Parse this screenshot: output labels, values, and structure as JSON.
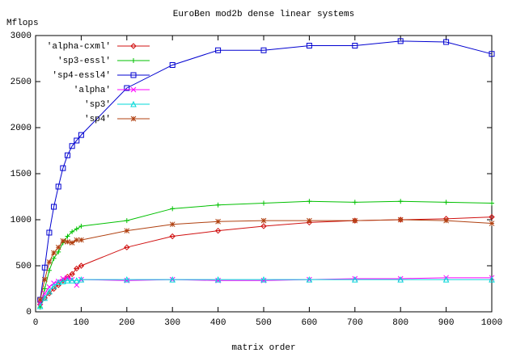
{
  "chart_data": {
    "type": "line",
    "title": "EuroBen mod2b dense linear systems",
    "ylabel": "Mflops",
    "xlabel": "matrix order",
    "x": [
      10,
      20,
      30,
      40,
      50,
      60,
      70,
      80,
      90,
      100,
      200,
      300,
      400,
      500,
      600,
      700,
      800,
      900,
      1000
    ],
    "xlim": [
      0,
      1000
    ],
    "xticks": [
      0,
      100,
      200,
      300,
      400,
      500,
      600,
      700,
      800,
      900,
      1000
    ],
    "ylim": [
      0,
      3000
    ],
    "yticks": [
      0,
      500,
      1000,
      1500,
      2000,
      2500,
      3000
    ],
    "legend": "top-left",
    "series": [
      {
        "name": "'alpha-cxml'",
        "color": "#d01010",
        "values": [
          80,
          150,
          200,
          250,
          290,
          340,
          380,
          410,
          470,
          500,
          700,
          820,
          880,
          930,
          970,
          990,
          1000,
          1010,
          1030
        ]
      },
      {
        "name": "'sp3-essl'",
        "color": "#00c000",
        "values": [
          50,
          250,
          450,
          580,
          650,
          750,
          820,
          870,
          900,
          930,
          990,
          1120,
          1160,
          1180,
          1200,
          1190,
          1200,
          1190,
          1180
        ]
      },
      {
        "name": "'sp4-essl4'",
        "color": "#0000d0",
        "values": [
          130,
          480,
          860,
          1140,
          1360,
          1560,
          1700,
          1800,
          1860,
          1920,
          2430,
          2680,
          2840,
          2840,
          2890,
          2890,
          2940,
          2930,
          2800
        ]
      },
      {
        "name": "'alpha'",
        "color": "#ff00ff",
        "values": [
          100,
          200,
          270,
          310,
          330,
          360,
          370,
          350,
          290,
          350,
          340,
          350,
          340,
          340,
          350,
          360,
          360,
          370,
          370
        ]
      },
      {
        "name": "'sp3'",
        "color": "#00d8d8",
        "values": [
          60,
          150,
          220,
          280,
          320,
          330,
          340,
          340,
          340,
          350,
          350,
          350,
          350,
          350,
          350,
          350,
          350,
          350,
          350
        ]
      },
      {
        "name": "'sp4'",
        "color": "#b04010",
        "values": [
          130,
          350,
          540,
          640,
          700,
          770,
          760,
          750,
          780,
          780,
          880,
          950,
          980,
          990,
          990,
          990,
          1000,
          990,
          960
        ]
      }
    ]
  }
}
